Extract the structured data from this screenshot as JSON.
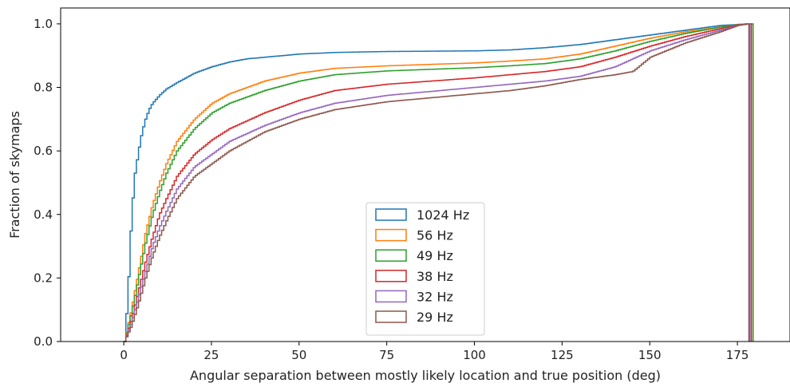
{
  "chart_data": {
    "type": "line",
    "subtype": "step cumulative histogram",
    "title": "",
    "xlabel": "Angular separation between mostly likely location and true position (deg)",
    "ylabel": "Fraction of skymaps",
    "xlim": [
      -18,
      190
    ],
    "ylim": [
      0,
      1.05
    ],
    "xticks": [
      0,
      25,
      50,
      75,
      100,
      125,
      150,
      175
    ],
    "yticks": [
      0.0,
      0.2,
      0.4,
      0.6,
      0.8,
      1.0
    ],
    "xtick_labels": [
      "0",
      "25",
      "50",
      "75",
      "100",
      "125",
      "150",
      "175"
    ],
    "ytick_labels": [
      "0.0",
      "0.2",
      "0.4",
      "0.6",
      "0.8",
      "1.0"
    ],
    "grid": false,
    "legend_position": "lower-center",
    "series": [
      {
        "name": "1024 Hz",
        "color": "#1f77b4",
        "end_x": 178.3,
        "x": [
          0,
          0.5,
          1,
          1.5,
          2,
          3,
          4,
          5,
          6,
          7,
          8,
          10,
          12,
          15,
          20,
          25,
          30,
          35,
          40,
          50,
          60,
          75,
          100,
          110,
          120,
          130,
          140,
          150,
          160,
          170,
          175,
          178
        ],
        "y": [
          0.0,
          0.07,
          0.16,
          0.27,
          0.4,
          0.53,
          0.6,
          0.66,
          0.7,
          0.73,
          0.75,
          0.775,
          0.795,
          0.815,
          0.845,
          0.865,
          0.88,
          0.89,
          0.895,
          0.905,
          0.91,
          0.913,
          0.915,
          0.918,
          0.925,
          0.935,
          0.95,
          0.965,
          0.98,
          0.995,
          0.998,
          1.0
        ]
      },
      {
        "name": "56 Hz",
        "color": "#ff7f0e",
        "end_x": 179.0,
        "x": [
          0,
          2,
          4,
          6,
          8,
          10,
          12,
          15,
          20,
          25,
          30,
          40,
          50,
          60,
          75,
          100,
          110,
          120,
          130,
          140,
          150,
          160,
          170,
          175,
          178
        ],
        "y": [
          0.0,
          0.1,
          0.22,
          0.34,
          0.43,
          0.5,
          0.56,
          0.63,
          0.7,
          0.75,
          0.78,
          0.82,
          0.845,
          0.86,
          0.868,
          0.877,
          0.883,
          0.89,
          0.905,
          0.93,
          0.955,
          0.975,
          0.99,
          0.998,
          1.0
        ]
      },
      {
        "name": "49 Hz",
        "color": "#2ca02c",
        "end_x": 179.5,
        "x": [
          0,
          2,
          4,
          6,
          8,
          10,
          12,
          15,
          20,
          25,
          30,
          40,
          50,
          60,
          75,
          100,
          110,
          120,
          130,
          140,
          150,
          160,
          170,
          175,
          178
        ],
        "y": [
          0.0,
          0.09,
          0.2,
          0.31,
          0.4,
          0.47,
          0.53,
          0.6,
          0.67,
          0.72,
          0.75,
          0.79,
          0.82,
          0.84,
          0.852,
          0.862,
          0.868,
          0.875,
          0.89,
          0.915,
          0.945,
          0.97,
          0.99,
          0.998,
          1.0
        ]
      },
      {
        "name": "38 Hz",
        "color": "#d62728",
        "end_x": 179.0,
        "x": [
          0,
          2,
          4,
          6,
          8,
          10,
          12,
          15,
          20,
          25,
          30,
          40,
          50,
          60,
          75,
          100,
          110,
          120,
          130,
          140,
          150,
          160,
          170,
          175,
          178
        ],
        "y": [
          0.0,
          0.07,
          0.16,
          0.25,
          0.33,
          0.4,
          0.45,
          0.52,
          0.59,
          0.635,
          0.67,
          0.72,
          0.76,
          0.79,
          0.81,
          0.83,
          0.84,
          0.85,
          0.865,
          0.895,
          0.93,
          0.96,
          0.985,
          0.997,
          1.0
        ]
      },
      {
        "name": "32 Hz",
        "color": "#9467bd",
        "end_x": 178.6,
        "x": [
          0,
          2,
          4,
          6,
          8,
          10,
          12,
          15,
          20,
          25,
          30,
          40,
          50,
          60,
          75,
          100,
          110,
          120,
          130,
          140,
          150,
          160,
          170,
          175,
          178
        ],
        "y": [
          0.0,
          0.06,
          0.14,
          0.22,
          0.3,
          0.36,
          0.41,
          0.48,
          0.55,
          0.59,
          0.63,
          0.68,
          0.72,
          0.75,
          0.775,
          0.8,
          0.81,
          0.82,
          0.835,
          0.865,
          0.915,
          0.95,
          0.98,
          0.996,
          1.0
        ]
      },
      {
        "name": "29 Hz",
        "color": "#8c564b",
        "end_x": 178.3,
        "x": [
          0,
          2,
          4,
          6,
          8,
          10,
          12,
          15,
          20,
          25,
          30,
          40,
          50,
          60,
          75,
          100,
          110,
          120,
          130,
          140,
          145,
          150,
          160,
          170,
          175,
          178
        ],
        "y": [
          0.0,
          0.05,
          0.12,
          0.2,
          0.27,
          0.33,
          0.38,
          0.45,
          0.52,
          0.56,
          0.6,
          0.66,
          0.7,
          0.73,
          0.755,
          0.78,
          0.79,
          0.805,
          0.825,
          0.84,
          0.85,
          0.895,
          0.94,
          0.975,
          0.995,
          1.0
        ]
      }
    ]
  }
}
